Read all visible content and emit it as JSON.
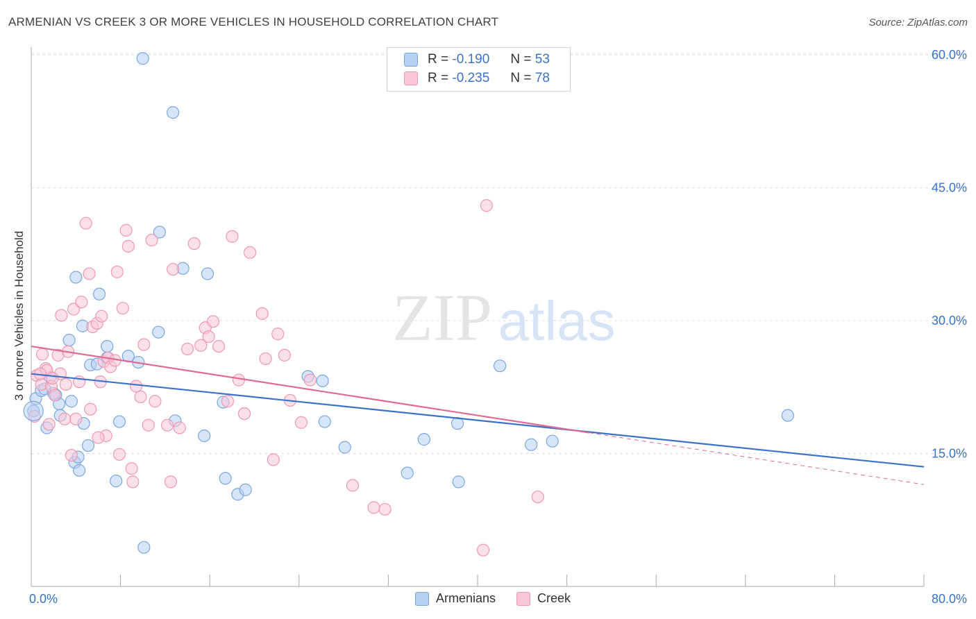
{
  "title": "ARMENIAN VS CREEK 3 OR MORE VEHICLES IN HOUSEHOLD CORRELATION CHART",
  "source": "Source: ZipAtlas.com",
  "watermark": {
    "zip": "ZIP",
    "atlas": "atlas"
  },
  "legend": {
    "r_label": "R =",
    "n_label": "N =",
    "items": [
      {
        "name": "Armenians",
        "r": "-0.190",
        "n": "53",
        "fill": "#b6d0f3",
        "stroke": "#7aa6e0"
      },
      {
        "name": "Creek",
        "r": "-0.235",
        "n": "78",
        "fill": "#f9c7d6",
        "stroke": "#ee98b4"
      }
    ]
  },
  "colors": {
    "blue_line": "#3a72c8",
    "pink_line": "#e06a97",
    "tick_label": "#3a72c8",
    "grid": "#dddddd"
  },
  "chart_data": {
    "type": "scatter",
    "title": "ARMENIAN VS CREEK 3 OR MORE VEHICLES IN HOUSEHOLD CORRELATION CHART",
    "xlabel": "",
    "ylabel": "3 or more Vehicles in Household",
    "xlim": [
      0,
      80
    ],
    "ylim": [
      0,
      61.5
    ],
    "x_tick_labels": [
      "0.0%",
      "80.0%"
    ],
    "y_ticks": [
      15,
      30,
      45,
      60
    ],
    "y_tick_labels": [
      "15.0%",
      "30.0%",
      "45.0%",
      "60.0%"
    ],
    "grid": "horizontal dashed",
    "series": [
      {
        "name": "Armenians",
        "color": "#b6d0f3",
        "stroke": "#7aa6e0",
        "trend": {
          "x": [
            0,
            80
          ],
          "y": [
            24.0,
            13.5
          ],
          "dashed_from": null
        },
        "points": [
          [
            0.2,
            19.8
          ],
          [
            0.4,
            21.2
          ],
          [
            0.9,
            22.1
          ],
          [
            1.2,
            22.3
          ],
          [
            1.4,
            17.9
          ],
          [
            1.7,
            23.6
          ],
          [
            2.0,
            21.8
          ],
          [
            2.2,
            21.6
          ],
          [
            2.5,
            20.6
          ],
          [
            2.6,
            19.3
          ],
          [
            3.4,
            27.8
          ],
          [
            3.6,
            20.9
          ],
          [
            3.9,
            14.0
          ],
          [
            4.0,
            34.9
          ],
          [
            4.3,
            13.1
          ],
          [
            4.6,
            29.4
          ],
          [
            4.7,
            18.4
          ],
          [
            5.1,
            15.9
          ],
          [
            5.3,
            25.0
          ],
          [
            5.9,
            25.1
          ],
          [
            6.1,
            33.0
          ],
          [
            6.8,
            27.1
          ],
          [
            6.8,
            25.8
          ],
          [
            7.6,
            11.9
          ],
          [
            7.9,
            18.6
          ],
          [
            8.7,
            26.0
          ],
          [
            9.6,
            25.3
          ],
          [
            10.1,
            4.4
          ],
          [
            10.0,
            59.6
          ],
          [
            11.5,
            40.0
          ],
          [
            11.4,
            28.7
          ],
          [
            12.7,
            53.5
          ],
          [
            13.6,
            35.9
          ],
          [
            12.9,
            18.7
          ],
          [
            15.8,
            35.3
          ],
          [
            15.5,
            17.0
          ],
          [
            17.4,
            12.2
          ],
          [
            17.2,
            20.8
          ],
          [
            18.5,
            10.4
          ],
          [
            19.2,
            10.9
          ],
          [
            24.8,
            23.7
          ],
          [
            26.1,
            23.2
          ],
          [
            26.3,
            18.6
          ],
          [
            28.1,
            15.7
          ],
          [
            33.7,
            12.8
          ],
          [
            35.2,
            16.6
          ],
          [
            38.2,
            18.4
          ],
          [
            38.3,
            11.8
          ],
          [
            42.0,
            24.9
          ],
          [
            44.8,
            16.0
          ],
          [
            46.7,
            16.4
          ],
          [
            67.8,
            19.3
          ],
          [
            4.2,
            14.6
          ]
        ]
      },
      {
        "name": "Creek",
        "color": "#f9c7d6",
        "stroke": "#ee98b4",
        "trend": {
          "x": [
            0,
            80
          ],
          "y": [
            27.1,
            11.5
          ],
          "dashed_from": 50
        },
        "points": [
          [
            0.3,
            19.2
          ],
          [
            0.5,
            23.8
          ],
          [
            0.9,
            22.8
          ],
          [
            1.0,
            26.2
          ],
          [
            1.3,
            24.6
          ],
          [
            1.4,
            24.4
          ],
          [
            1.6,
            18.3
          ],
          [
            1.8,
            22.6
          ],
          [
            2.1,
            21.6
          ],
          [
            2.4,
            26.1
          ],
          [
            2.6,
            24.0
          ],
          [
            2.7,
            30.6
          ],
          [
            3.1,
            22.8
          ],
          [
            3.3,
            26.5
          ],
          [
            3.6,
            14.8
          ],
          [
            3.8,
            31.3
          ],
          [
            4.0,
            18.9
          ],
          [
            4.3,
            23.1
          ],
          [
            4.5,
            32.1
          ],
          [
            4.9,
            41.0
          ],
          [
            5.2,
            35.3
          ],
          [
            5.3,
            20.0
          ],
          [
            5.5,
            29.3
          ],
          [
            5.9,
            29.7
          ],
          [
            6.2,
            23.1
          ],
          [
            6.3,
            30.5
          ],
          [
            6.5,
            25.4
          ],
          [
            6.7,
            17.0
          ],
          [
            6.9,
            25.8
          ],
          [
            7.1,
            24.8
          ],
          [
            7.5,
            25.5
          ],
          [
            7.7,
            35.5
          ],
          [
            7.9,
            14.9
          ],
          [
            8.2,
            31.4
          ],
          [
            8.5,
            40.2
          ],
          [
            8.7,
            38.4
          ],
          [
            9.0,
            13.3
          ],
          [
            9.1,
            11.8
          ],
          [
            9.4,
            22.6
          ],
          [
            9.8,
            21.4
          ],
          [
            10.1,
            27.3
          ],
          [
            10.5,
            18.2
          ],
          [
            10.8,
            39.1
          ],
          [
            11.1,
            20.9
          ],
          [
            12.2,
            18.2
          ],
          [
            12.5,
            11.8
          ],
          [
            12.7,
            35.8
          ],
          [
            13.3,
            17.9
          ],
          [
            14.0,
            26.8
          ],
          [
            14.6,
            38.7
          ],
          [
            15.2,
            27.2
          ],
          [
            15.6,
            29.2
          ],
          [
            15.9,
            28.2
          ],
          [
            16.3,
            29.9
          ],
          [
            16.8,
            27.1
          ],
          [
            17.6,
            20.9
          ],
          [
            18.0,
            39.5
          ],
          [
            18.6,
            23.3
          ],
          [
            19.1,
            19.5
          ],
          [
            19.6,
            37.7
          ],
          [
            20.7,
            30.8
          ],
          [
            21.0,
            25.7
          ],
          [
            21.7,
            14.3
          ],
          [
            22.1,
            28.5
          ],
          [
            22.7,
            26.1
          ],
          [
            23.2,
            21.0
          ],
          [
            24.2,
            18.5
          ],
          [
            25.0,
            23.3
          ],
          [
            28.8,
            11.4
          ],
          [
            30.7,
            8.9
          ],
          [
            31.7,
            8.7
          ],
          [
            40.5,
            4.1
          ],
          [
            40.8,
            43.0
          ],
          [
            45.4,
            10.1
          ],
          [
            0.8,
            24.0
          ],
          [
            1.9,
            23.5
          ],
          [
            3.0,
            18.9
          ],
          [
            6.0,
            16.8
          ]
        ]
      }
    ]
  }
}
